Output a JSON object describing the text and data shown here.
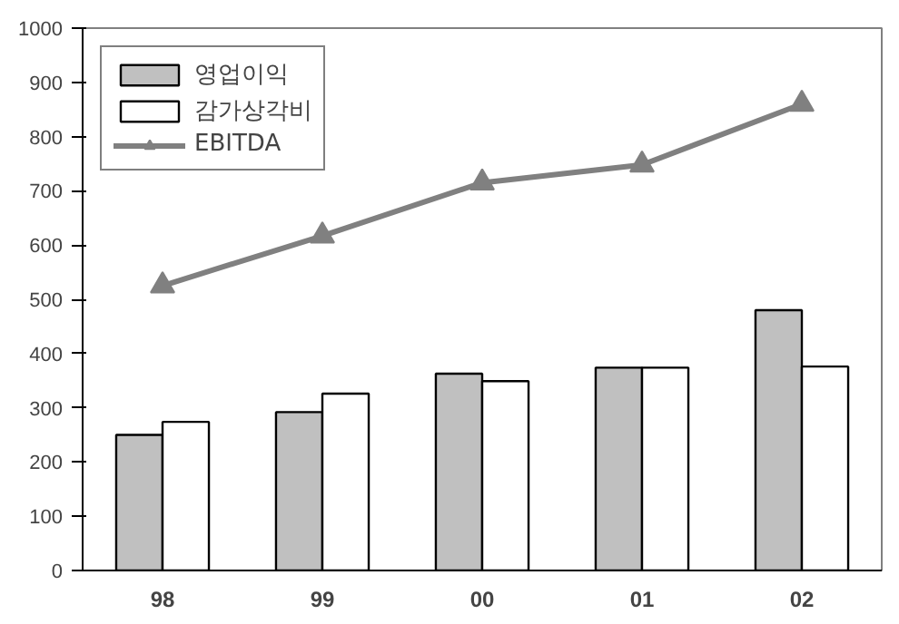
{
  "chart_data": {
    "type": "bar",
    "categories": [
      "98",
      "99",
      "00",
      "01",
      "02"
    ],
    "series": [
      {
        "name": "영업이익",
        "color": "#c0c0c0",
        "values": [
          250,
          292,
          363,
          374,
          480
        ]
      },
      {
        "name": "감가상각비",
        "color": "#ffffff",
        "values": [
          274,
          326,
          349,
          374,
          376
        ]
      },
      {
        "name": "EBITDA",
        "type": "line",
        "color": "#808080",
        "marker": "triangle",
        "values": [
          525,
          617,
          715,
          748,
          860
        ]
      }
    ],
    "ylim": [
      0,
      1000
    ],
    "yticks": [
      0,
      100,
      200,
      300,
      400,
      500,
      600,
      700,
      800,
      900,
      1000
    ],
    "grid": false,
    "legend": "top left"
  }
}
